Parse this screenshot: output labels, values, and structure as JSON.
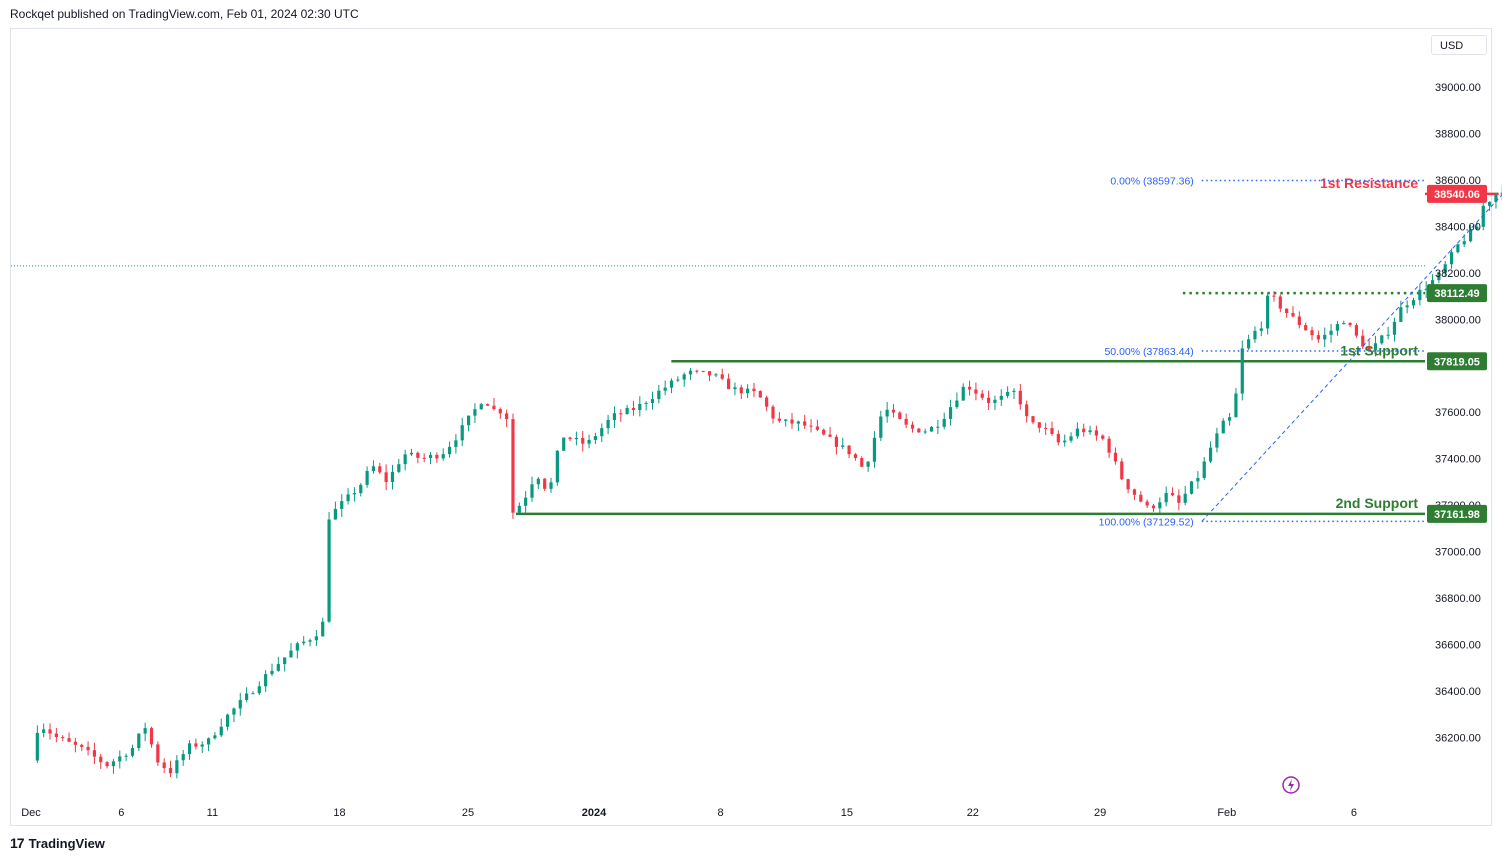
{
  "header": {
    "publisher_text": "Rockqet published on TradingView.com, Feb 01, 2024 02:30 UTC"
  },
  "footer": {
    "brand": "TradingView",
    "logo": "17"
  },
  "currency": "USD",
  "colors": {
    "up": "#089981",
    "down": "#f23645",
    "support": "#2e7d32",
    "resistance": "#f23645",
    "fib": "#2962ff"
  },
  "chart_data": {
    "type": "candlestick",
    "title": "",
    "xlabel": "",
    "ylabel": "",
    "ylim": [
      35930,
      39250
    ],
    "y_ticks": [
      36200,
      36400,
      36600,
      36800,
      37000,
      37200,
      37400,
      37600,
      37800,
      38000,
      38200,
      38400,
      38600,
      38800,
      39000
    ],
    "x_ticks": [
      {
        "label": "Dec",
        "t": 0
      },
      {
        "label": "6",
        "t": 0.0715
      },
      {
        "label": "11",
        "t": 0.1436
      },
      {
        "label": "18",
        "t": 0.2443
      },
      {
        "label": "25",
        "t": 0.346
      },
      {
        "label": "2024",
        "t": 0.4458
      },
      {
        "label": "8",
        "t": 0.546
      },
      {
        "label": "15",
        "t": 0.646
      },
      {
        "label": "22",
        "t": 0.7457
      },
      {
        "label": "29",
        "t": 0.8465
      },
      {
        "label": "Feb",
        "t": 0.9468
      },
      {
        "label": "6",
        "t": 1.0475
      }
    ],
    "keypoints": [
      [
        0,
        36100
      ],
      [
        0.006,
        36260
      ],
      [
        0.02,
        36200
      ],
      [
        0.04,
        36150
      ],
      [
        0.06,
        36080
      ],
      [
        0.08,
        36150
      ],
      [
        0.09,
        36250
      ],
      [
        0.1,
        36100
      ],
      [
        0.11,
        36050
      ],
      [
        0.125,
        36160
      ],
      [
        0.14,
        36180
      ],
      [
        0.155,
        36290
      ],
      [
        0.175,
        36400
      ],
      [
        0.19,
        36490
      ],
      [
        0.21,
        36590
      ],
      [
        0.225,
        36640
      ],
      [
        0.232,
        36700
      ],
      [
        0.236,
        37150
      ],
      [
        0.245,
        37200
      ],
      [
        0.26,
        37280
      ],
      [
        0.27,
        37370
      ],
      [
        0.282,
        37300
      ],
      [
        0.295,
        37420
      ],
      [
        0.31,
        37400
      ],
      [
        0.325,
        37420
      ],
      [
        0.335,
        37480
      ],
      [
        0.345,
        37560
      ],
      [
        0.358,
        37660
      ],
      [
        0.37,
        37590
      ],
      [
        0.376,
        37650
      ],
      [
        0.38,
        37160
      ],
      [
        0.39,
        37220
      ],
      [
        0.4,
        37340
      ],
      [
        0.41,
        37250
      ],
      [
        0.42,
        37500
      ],
      [
        0.44,
        37460
      ],
      [
        0.46,
        37580
      ],
      [
        0.48,
        37620
      ],
      [
        0.5,
        37700
      ],
      [
        0.52,
        37770
      ],
      [
        0.54,
        37760
      ],
      [
        0.555,
        37700
      ],
      [
        0.575,
        37680
      ],
      [
        0.59,
        37560
      ],
      [
        0.61,
        37550
      ],
      [
        0.63,
        37490
      ],
      [
        0.65,
        37420
      ],
      [
        0.66,
        37350
      ],
      [
        0.675,
        37620
      ],
      [
        0.695,
        37530
      ],
      [
        0.71,
        37520
      ],
      [
        0.72,
        37560
      ],
      [
        0.74,
        37720
      ],
      [
        0.76,
        37640
      ],
      [
        0.78,
        37690
      ],
      [
        0.79,
        37550
      ],
      [
        0.8,
        37540
      ],
      [
        0.815,
        37460
      ],
      [
        0.83,
        37530
      ],
      [
        0.85,
        37480
      ],
      [
        0.865,
        37300
      ],
      [
        0.885,
        37180
      ],
      [
        0.9,
        37250
      ],
      [
        0.91,
        37200
      ],
      [
        0.915,
        37260
      ],
      [
        0.925,
        37330
      ],
      [
        0.935,
        37460
      ],
      [
        0.945,
        37560
      ],
      [
        0.952,
        37580
      ],
      [
        0.958,
        37860
      ],
      [
        0.968,
        37940
      ],
      [
        0.975,
        37980
      ],
      [
        0.98,
        38110
      ],
      [
        0.99,
        38050
      ],
      [
        1.0,
        38000
      ],
      [
        1.02,
        37910
      ],
      [
        1.04,
        38000
      ],
      [
        1.05,
        37920
      ],
      [
        1.06,
        37860
      ],
      [
        1.075,
        37950
      ],
      [
        1.085,
        38050
      ],
      [
        1.1,
        38120
      ],
      [
        1.115,
        38190
      ],
      [
        1.13,
        38320
      ],
      [
        1.145,
        38400
      ],
      [
        1.15,
        38490
      ],
      [
        1.16,
        38540
      ],
      [
        1.165,
        38560
      ],
      [
        1.175,
        38500
      ],
      [
        1.178,
        38150
      ],
      [
        1.185,
        38200
      ]
    ],
    "levels": [
      {
        "name": "resistance",
        "value": 38540.06,
        "label": "1st Resistance",
        "badge": "38540.06",
        "style": "solid",
        "color": "#f23645",
        "t_start": 1.162
      },
      {
        "name": "support1",
        "value": 37819.05,
        "label": "1st Support",
        "badge": "37819.05",
        "style": "solid",
        "color": "#2e7d32",
        "t_start": 0.507
      },
      {
        "name": "support2",
        "value": 37161.98,
        "label": "2nd Support",
        "badge": "37161.98",
        "style": "solid",
        "color": "#2e7d32",
        "t_start": 0.384
      },
      {
        "name": "dotted-level",
        "value": 38112.49,
        "label": "",
        "badge": "38112.49",
        "style": "dotted",
        "color": "#2e7d32",
        "t_start": 0.912
      }
    ],
    "fib": [
      {
        "pct": "0.00% (38597.36)",
        "value": 38597.36
      },
      {
        "pct": "50.00% (37863.44)",
        "value": 37863.44
      },
      {
        "pct": "100.00% (37129.52)",
        "value": 37129.52
      }
    ],
    "fib_t_start": 0.927,
    "fib_trend": {
      "from": [
        0.927,
        37129.52
      ],
      "to": [
        1.175,
        38597.36
      ]
    },
    "current_price": 38230
  }
}
